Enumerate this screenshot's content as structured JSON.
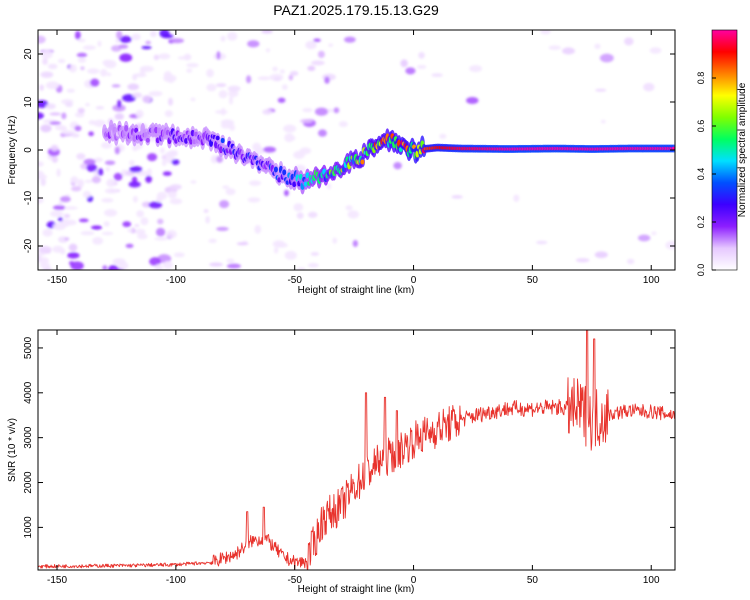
{
  "figure": {
    "title": "PAZ1.2025.179.15.13.G29"
  },
  "chart_data": [
    {
      "type": "heatmap",
      "xlabel": "Height of straight line (km)",
      "ylabel": "Frequency (Hz)",
      "xlim": [
        -158,
        110
      ],
      "ylim": [
        -25,
        25
      ],
      "xticks": [
        -150,
        -100,
        -50,
        0,
        50,
        100
      ],
      "yticks": [
        20,
        10,
        0,
        -10,
        -20
      ],
      "colorbar": {
        "label": "Normalized spectral amplitude",
        "range": [
          0,
          1
        ],
        "ticks": [
          0.0,
          0.2,
          0.4,
          0.6,
          0.8
        ],
        "colors": [
          "#ffffff",
          "#e6c8ff",
          "#8c1eff",
          "#3c00ff",
          "#0050ff",
          "#00e0ff",
          "#00ff60",
          "#80ff00",
          "#ffff00",
          "#ff8000",
          "#ff0000",
          "#ff00a0"
        ]
      },
      "ridge": {
        "height": [
          -125,
          -110,
          -100,
          -90,
          -80,
          -70,
          -62,
          -55,
          -50,
          -45,
          -40,
          -35,
          -30,
          -25,
          -20,
          -15,
          -10,
          -5,
          0,
          10,
          20,
          40,
          60,
          75,
          90,
          110
        ],
        "frequency": [
          3.5,
          3.0,
          3.0,
          2.5,
          1.0,
          -1.5,
          -3.5,
          -5.5,
          -6.0,
          -6.5,
          -5.5,
          -4.5,
          -3.5,
          -2.5,
          -1.0,
          1.0,
          2.0,
          1.0,
          0.0,
          0.5,
          0.3,
          0.2,
          0.3,
          0.2,
          0.3,
          0.3
        ],
        "amplitude": [
          0.15,
          0.2,
          0.22,
          0.2,
          0.3,
          0.28,
          0.25,
          0.35,
          0.38,
          0.45,
          0.5,
          0.55,
          0.6,
          0.65,
          0.7,
          0.75,
          0.72,
          0.8,
          0.82,
          0.9,
          0.95,
          1.0,
          1.0,
          1.0,
          1.0,
          1.0
        ]
      }
    },
    {
      "type": "line",
      "xlabel": "Height of straight line (km)",
      "ylabel": "SNR (10 * v/v)",
      "xlim": [
        -158,
        110
      ],
      "ylim": [
        50,
        5400
      ],
      "xticks": [
        -150,
        -100,
        -50,
        0,
        50,
        100
      ],
      "yticks": [
        1000,
        2000,
        3000,
        4000,
        5000
      ],
      "color": "#e8322c",
      "envelope": {
        "height": [
          -158,
          -120,
          -100,
          -85,
          -75,
          -68,
          -62,
          -55,
          -50,
          -45,
          -40,
          -38,
          -30,
          -25,
          -20,
          -15,
          -10,
          -5,
          0,
          10,
          20,
          30,
          40,
          50,
          60,
          70,
          75,
          80,
          90,
          100,
          110
        ],
        "snr": [
          130,
          150,
          170,
          220,
          400,
          700,
          750,
          350,
          220,
          230,
          900,
          1200,
          1500,
          1900,
          2200,
          2450,
          2600,
          2750,
          2950,
          3200,
          3400,
          3550,
          3650,
          3650,
          3680,
          3620,
          3400,
          3500,
          3600,
          3580,
          3500
        ]
      },
      "spikes": [
        {
          "height": -70,
          "snr": 1350
        },
        {
          "height": -63,
          "snr": 1450
        },
        {
          "height": -20,
          "snr": 4000
        },
        {
          "height": -12,
          "snr": 3900
        },
        {
          "height": -7,
          "snr": 3600
        },
        {
          "height": 73,
          "snr": 5400
        },
        {
          "height": 76,
          "snr": 5200
        }
      ]
    }
  ]
}
